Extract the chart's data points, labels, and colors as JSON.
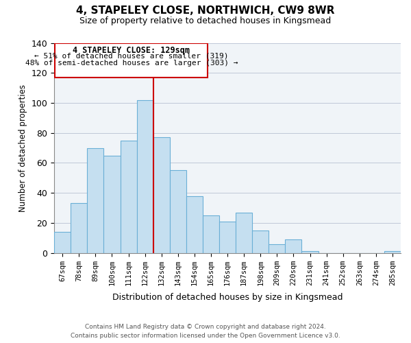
{
  "title": "4, STAPELEY CLOSE, NORTHWICH, CW9 8WR",
  "subtitle": "Size of property relative to detached houses in Kingsmead",
  "xlabel": "Distribution of detached houses by size in Kingsmead",
  "ylabel": "Number of detached properties",
  "bin_labels": [
    "67sqm",
    "78sqm",
    "89sqm",
    "100sqm",
    "111sqm",
    "122sqm",
    "132sqm",
    "143sqm",
    "154sqm",
    "165sqm",
    "176sqm",
    "187sqm",
    "198sqm",
    "209sqm",
    "220sqm",
    "231sqm",
    "241sqm",
    "252sqm",
    "263sqm",
    "274sqm",
    "285sqm"
  ],
  "bar_heights": [
    14,
    33,
    70,
    65,
    75,
    102,
    77,
    55,
    38,
    25,
    21,
    27,
    15,
    6,
    9,
    1,
    0,
    0,
    0,
    0,
    1
  ],
  "bar_color": "#c5dff0",
  "bar_edge_color": "#6aafd6",
  "vline_color": "#cc0000",
  "annotation_title": "4 STAPELEY CLOSE: 129sqm",
  "annotation_line1": "← 51% of detached houses are smaller (319)",
  "annotation_line2": "48% of semi-detached houses are larger (303) →",
  "ylim": [
    0,
    140
  ],
  "yticks": [
    0,
    20,
    40,
    60,
    80,
    100,
    120,
    140
  ],
  "footer_line1": "Contains HM Land Registry data © Crown copyright and database right 2024.",
  "footer_line2": "Contains public sector information licensed under the Open Government Licence v3.0."
}
